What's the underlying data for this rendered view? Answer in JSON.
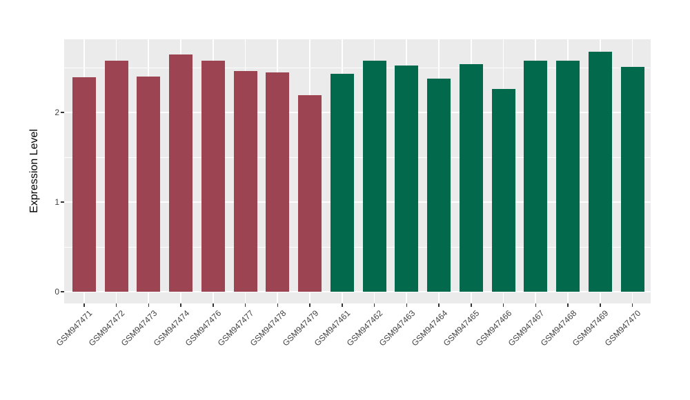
{
  "figure": {
    "background": "#FFFFFF",
    "panel_background": "#EBEBEB",
    "grid_color": "#FFFFFF",
    "axis_text_color": "#404040",
    "axis_title_color": "#000000",
    "tick_mark_color": "#333333"
  },
  "chart_data": {
    "type": "bar",
    "title": "",
    "xlabel": "",
    "ylabel": "Expression Level",
    "ylim": [
      0,
      2.82
    ],
    "yticks": [
      0,
      1,
      2
    ],
    "yticks_minor": [
      0.5,
      1.5,
      2.5
    ],
    "grid": "white major and minor gridlines on gray panel, vertical major line at each category",
    "legend_position": "none",
    "x_tick_rotation_deg": 45,
    "categories": [
      "GSM947471",
      "GSM947472",
      "GSM947473",
      "GSM947474",
      "GSM947476",
      "GSM947477",
      "GSM947478",
      "GSM947479",
      "GSM947461",
      "GSM947462",
      "GSM947463",
      "GSM947464",
      "GSM947465",
      "GSM947466",
      "GSM947467",
      "GSM947468",
      "GSM947469",
      "GSM947470"
    ],
    "values": [
      2.39,
      2.58,
      2.4,
      2.65,
      2.58,
      2.46,
      2.45,
      2.19,
      2.43,
      2.58,
      2.52,
      2.38,
      2.54,
      2.26,
      2.58,
      2.58,
      2.68,
      2.51
    ],
    "bar_groups": [
      "group1",
      "group1",
      "group1",
      "group1",
      "group1",
      "group1",
      "group1",
      "group1",
      "group2",
      "group2",
      "group2",
      "group2",
      "group2",
      "group2",
      "group2",
      "group2",
      "group2",
      "group2"
    ],
    "group_colors": {
      "group1": "#9D4452",
      "group2": "#03694C"
    }
  }
}
